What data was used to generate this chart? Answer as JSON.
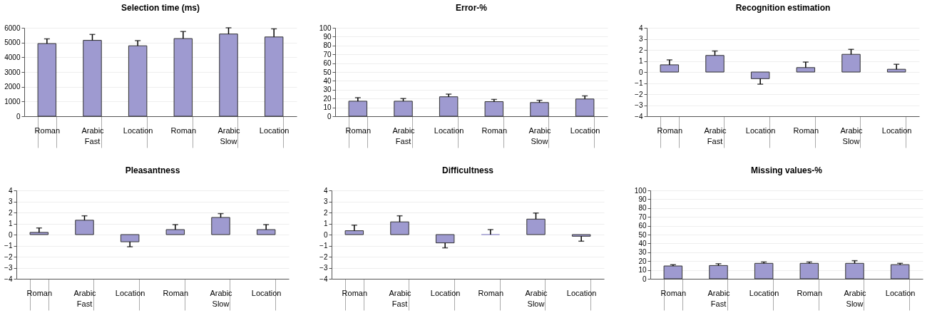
{
  "chart_data": [
    {
      "type": "bar",
      "title": "Selection time (ms)",
      "categories": [
        "Roman",
        "Arabic",
        "Location",
        "Roman",
        "Arabic",
        "Location"
      ],
      "values": [
        4930,
        5150,
        4780,
        5270,
        5580,
        5380
      ],
      "errors": [
        [
          4930,
          5250
        ],
        [
          5150,
          5550
        ],
        [
          4780,
          5130
        ],
        [
          5270,
          5750
        ],
        [
          5580,
          6000
        ],
        [
          5380,
          5930
        ]
      ],
      "color": "#9e9ad0",
      "ylim": [
        0,
        6000
      ],
      "yticks": [
        0,
        1000,
        2000,
        3000,
        4000,
        5000,
        6000
      ],
      "grid": "y",
      "annotations": [
        "Fast",
        "Slow"
      ]
    },
    {
      "type": "bar",
      "title": "Error-%",
      "categories": [
        "Roman",
        "Arabic",
        "Location",
        "Roman",
        "Arabic",
        "Location"
      ],
      "values": [
        17,
        17,
        22,
        16.5,
        15.5,
        19.5
      ],
      "errors": [
        [
          17,
          21
        ],
        [
          17,
          20
        ],
        [
          22,
          25
        ],
        [
          16.5,
          19
        ],
        [
          15.5,
          18
        ],
        [
          19.5,
          23
        ]
      ],
      "color": "#9e9ad0",
      "ylim": [
        0,
        100
      ],
      "yticks": [
        0,
        10,
        20,
        30,
        40,
        50,
        60,
        70,
        80,
        90,
        100
      ],
      "grid": "y",
      "annotations": [
        "Fast",
        "Slow"
      ]
    },
    {
      "type": "bar",
      "title": "Recognition estimation",
      "categories": [
        "Roman",
        "Arabic",
        "Location",
        "Roman",
        "Arabic",
        "Location"
      ],
      "values": [
        0.65,
        1.5,
        -0.6,
        0.4,
        1.6,
        0.25
      ],
      "errors": [
        [
          0.65,
          1.1
        ],
        [
          1.5,
          1.9
        ],
        [
          -1.1,
          -0.6
        ],
        [
          0.4,
          0.9
        ],
        [
          1.6,
          2.05
        ],
        [
          0.25,
          0.7
        ]
      ],
      "color": "#9e9ad0",
      "ylim": [
        -4,
        4
      ],
      "yticks": [
        -4,
        -3,
        -2,
        -1,
        0,
        1,
        2,
        3,
        4
      ],
      "grid": "y",
      "annotations": [
        "Fast",
        "Slow"
      ]
    },
    {
      "type": "bar",
      "title": "Pleasantness",
      "categories": [
        "Roman",
        "Arabic",
        "Location",
        "Roman",
        "Arabic",
        "Location"
      ],
      "values": [
        0.2,
        1.3,
        -0.65,
        0.45,
        1.55,
        0.45
      ],
      "errors": [
        [
          0.2,
          0.6
        ],
        [
          1.3,
          1.7
        ],
        [
          -1.1,
          -0.65
        ],
        [
          0.45,
          0.9
        ],
        [
          1.55,
          1.9
        ],
        [
          0.45,
          0.9
        ]
      ],
      "color": "#9e9ad0",
      "ylim": [
        -4,
        4
      ],
      "yticks": [
        -4,
        -3,
        -2,
        -1,
        0,
        1,
        2,
        3,
        4
      ],
      "grid": "y",
      "annotations": [
        "Fast",
        "Slow"
      ]
    },
    {
      "type": "bar",
      "title": "Difficultness",
      "categories": [
        "Roman",
        "Arabic",
        "Location",
        "Roman",
        "Arabic",
        "Location"
      ],
      "values": [
        0.35,
        1.15,
        -0.75,
        0,
        1.4,
        -0.15
      ],
      "errors": [
        [
          0.35,
          0.85
        ],
        [
          1.15,
          1.7
        ],
        [
          -1.2,
          -0.75
        ],
        [
          0,
          0.45
        ],
        [
          1.4,
          1.95
        ],
        [
          -0.6,
          -0.15
        ]
      ],
      "color": "#9e9ad0",
      "ylim": [
        -4,
        4
      ],
      "yticks": [
        -4,
        -3,
        -2,
        -1,
        0,
        1,
        2,
        3,
        4
      ],
      "grid": "y",
      "annotations": [
        "Fast",
        "Slow"
      ]
    },
    {
      "type": "bar",
      "title": "Missing values-%",
      "categories": [
        "Roman",
        "Arabic",
        "Location",
        "Roman",
        "Arabic",
        "Location"
      ],
      "values": [
        14.5,
        15,
        17.5,
        17.5,
        17.5,
        16
      ],
      "errors": [
        [
          14.5,
          16
        ],
        [
          15,
          17
        ],
        [
          17.5,
          19
        ],
        [
          17.5,
          19
        ],
        [
          17.5,
          20.5
        ],
        [
          16,
          17.5
        ]
      ],
      "color": "#9e9ad0",
      "ylim": [
        0,
        100
      ],
      "yticks": [
        0,
        10,
        20,
        30,
        40,
        50,
        60,
        70,
        80,
        90,
        100
      ],
      "grid": "y",
      "annotations": [
        "Fast",
        "Slow"
      ]
    }
  ]
}
